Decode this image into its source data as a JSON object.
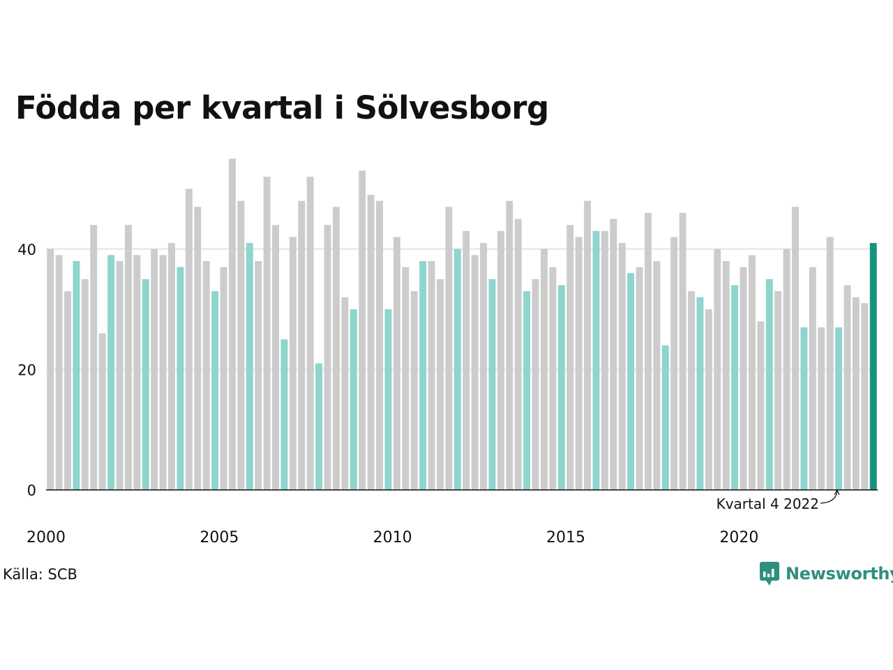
{
  "chart_data": {
    "type": "bar",
    "title": "Födda per kvartal i Sölvesborg",
    "xlabel": "",
    "ylabel": "",
    "ylim": [
      0,
      55
    ],
    "yticks": [
      0,
      20,
      40
    ],
    "xtick_labels": [
      "2000",
      "2005",
      "2010",
      "2015",
      "2020"
    ],
    "grid": true,
    "start_year": 2000,
    "values": [
      40,
      39,
      33,
      38,
      35,
      44,
      26,
      39,
      38,
      44,
      39,
      35,
      40,
      39,
      41,
      37,
      50,
      47,
      38,
      33,
      37,
      55,
      48,
      41,
      38,
      52,
      44,
      25,
      42,
      48,
      52,
      21,
      44,
      47,
      32,
      30,
      53,
      49,
      48,
      30,
      42,
      37,
      33,
      38,
      38,
      35,
      47,
      40,
      43,
      39,
      41,
      35,
      43,
      48,
      45,
      33,
      35,
      40,
      37,
      34,
      44,
      42,
      48,
      43,
      43,
      45,
      41,
      36,
      37,
      46,
      38,
      24,
      42,
      46,
      33,
      32,
      30,
      40,
      38,
      34,
      37,
      39,
      28,
      35,
      33,
      40,
      47,
      27,
      37,
      27,
      42,
      27,
      34,
      32,
      31,
      41
    ],
    "highlight_quarter": 4,
    "annotation": "Kvartal 4 2022",
    "colors": {
      "bar": "#cccccc",
      "quarter_highlight": "#8dd5cd",
      "latest": "#16937f",
      "grid": "#e3e3e3",
      "axis": "#111111"
    }
  },
  "source": "Källa: SCB",
  "brand": {
    "name": "Newsworthy",
    "icon": "newsworthy-logo-icon",
    "color": "#2f8f7e"
  }
}
